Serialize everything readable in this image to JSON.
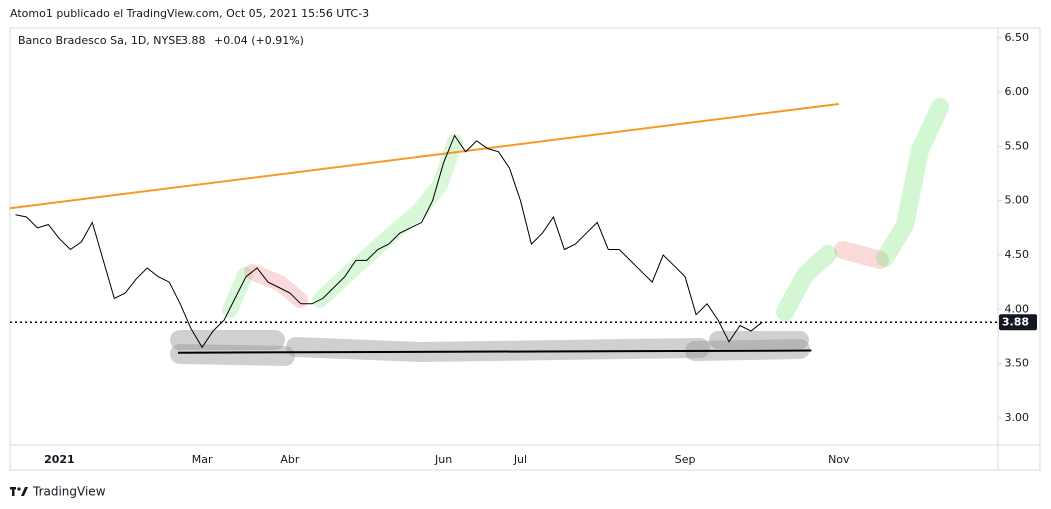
{
  "header": {
    "publisher": "Atomo1 publicado el TradingView.com, Oct 05, 2021 15:56 UTC-3"
  },
  "footer": {
    "brand": "TradingView"
  },
  "chart_data": {
    "type": "line",
    "symbol": "Banco Bradesco Sa, 1D, NYSE",
    "last_price": 3.88,
    "change": "+0.04 (+0.91%)",
    "categories": [
      null,
      null,
      null,
      null,
      "2021",
      null,
      null,
      null,
      null,
      null,
      null,
      null,
      null,
      null,
      null,
      null,
      null,
      "Mar",
      null,
      null,
      null,
      null,
      null,
      null,
      null,
      "Abr",
      null,
      null,
      null,
      null,
      null,
      null,
      null,
      null,
      null,
      null,
      null,
      null,
      null,
      "Jun",
      null,
      null,
      null,
      null,
      null,
      null,
      "Jul",
      null,
      null,
      null,
      null,
      null,
      null,
      null,
      null,
      null,
      null,
      null,
      null,
      null,
      null,
      "Sep",
      null,
      null,
      null,
      null,
      null,
      null,
      null,
      null,
      null,
      null,
      null,
      null,
      null,
      "Nov",
      null,
      null,
      null,
      null,
      null,
      null,
      null,
      null,
      null,
      null,
      null,
      null,
      null,
      null
    ],
    "series": [
      {
        "color": "#000000",
        "values": [
          4.87,
          4.85,
          4.75,
          4.78,
          4.65,
          4.55,
          4.62,
          4.8,
          4.45,
          4.1,
          4.15,
          4.28,
          4.38,
          4.3,
          4.25,
          4.05,
          3.82,
          3.65,
          3.8,
          3.9,
          4.1,
          4.3,
          4.38,
          4.25,
          4.2,
          4.15,
          4.05,
          4.05,
          4.1,
          4.2,
          4.3,
          4.45,
          4.45,
          4.55,
          4.6,
          4.7,
          4.75,
          4.8,
          5.0,
          5.35,
          5.6,
          5.45,
          5.55,
          5.48,
          5.45,
          5.3,
          5.0,
          4.6,
          4.7,
          4.85,
          4.55,
          4.6,
          4.7,
          4.8,
          4.55,
          4.55,
          4.45,
          4.35,
          4.25,
          4.5,
          4.4,
          4.3,
          3.95,
          4.05,
          3.9,
          3.7,
          3.85,
          3.8,
          3.88,
          null,
          null,
          null,
          null,
          null,
          null,
          null,
          null,
          null,
          null,
          null,
          null,
          null,
          null,
          null,
          null,
          null,
          null,
          null,
          null,
          null
        ]
      }
    ],
    "trend_line": {
      "color": "#f59a23",
      "x": [
        -0.5,
        75
      ],
      "values": [
        4.93,
        5.89
      ]
    },
    "support_line": {
      "color": "#000000",
      "x": [
        14.8,
        72.5
      ],
      "values": [
        3.6,
        3.62
      ]
    },
    "ylim": [
      2.75,
      6.59
    ],
    "yticks": [
      {
        "value": 6.5,
        "label": "6.50"
      },
      {
        "value": 6,
        "label": "6.00"
      },
      {
        "value": 5.5,
        "label": "5.50"
      },
      {
        "value": 5,
        "label": "5.00"
      },
      {
        "value": 4.5,
        "label": "4.50"
      },
      {
        "value": 4,
        "label": "4.00"
      },
      {
        "value": 3.5,
        "label": "3.50"
      },
      {
        "value": 3,
        "label": "3.00"
      }
    ]
  }
}
